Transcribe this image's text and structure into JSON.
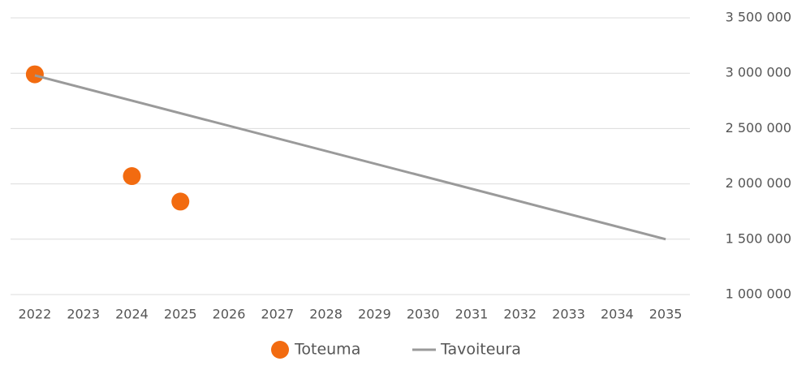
{
  "chart_data": {
    "type": "line",
    "series": [
      {
        "name": "Toteuma",
        "color": "#f26b10",
        "style": "markers",
        "x": [
          2022,
          2024,
          2025
        ],
        "values": [
          2990000,
          2070000,
          1840000
        ]
      },
      {
        "name": "Tavoiteura",
        "color": "#9a9a9a",
        "style": "line",
        "x": [
          2022,
          2035
        ],
        "values": [
          2980000,
          1500000
        ]
      }
    ],
    "xlim": [
      2021.5,
      2035.5
    ],
    "xticks": [
      2022,
      2023,
      2024,
      2025,
      2026,
      2027,
      2028,
      2029,
      2030,
      2031,
      2032,
      2033,
      2034,
      2035
    ],
    "ylim": [
      1000000,
      3500000
    ],
    "yticks": [
      {
        "value": 1000000,
        "label": "1 000 000"
      },
      {
        "value": 1500000,
        "label": "1 500 000"
      },
      {
        "value": 2000000,
        "label": "2 000 000"
      },
      {
        "value": 2500000,
        "label": "2 500 000"
      },
      {
        "value": 3000000,
        "label": "3 000 000"
      },
      {
        "value": 3500000,
        "label": "3 500 000"
      }
    ],
    "grid": true,
    "legend": "bottom"
  }
}
